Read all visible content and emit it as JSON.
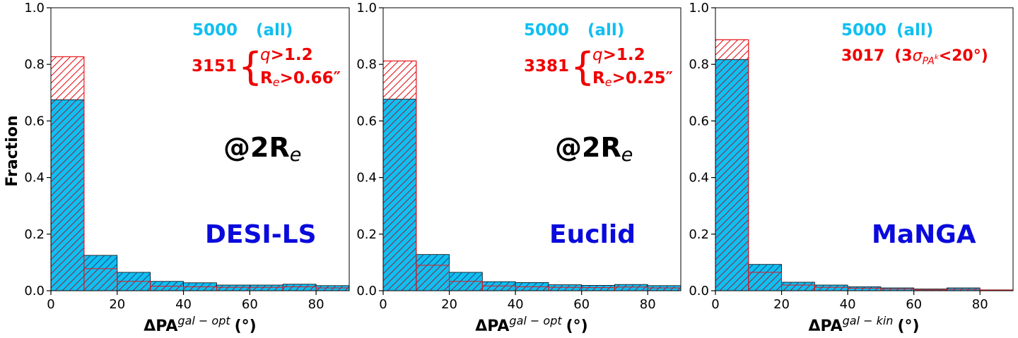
{
  "colors": {
    "fill_all": "#10bff0",
    "hatch_all": "#1b4a86",
    "hatch_subset": "#e8151b",
    "text_all": "#10bff0",
    "text_subset": "#ee0000",
    "text_survey": "#0a0adc",
    "text_radius": "#000000"
  },
  "chart_data": [
    {
      "type": "bar",
      "ylabel": "Fraction",
      "xlabel_base": "ΔPA",
      "xlabel_sup": "gal − opt",
      "xlabel_unit": "(°)",
      "xlim": [
        0,
        90
      ],
      "ylim": [
        0,
        1.0
      ],
      "xticks": [
        "0",
        "20",
        "40",
        "60",
        "80"
      ],
      "yticks": [
        "0.0",
        "0.2",
        "0.4",
        "0.6",
        "0.8",
        "1.0"
      ],
      "bin_edges": [
        0,
        10,
        20,
        30,
        40,
        50,
        60,
        70,
        80,
        90
      ],
      "series": [
        {
          "values": [
            0.675,
            0.125,
            0.065,
            0.033,
            0.028,
            0.02,
            0.02,
            0.023,
            0.018
          ]
        },
        {
          "values": [
            0.827,
            0.078,
            0.033,
            0.016,
            0.014,
            0.012,
            0.012,
            0.014,
            0.01
          ]
        }
      ],
      "annotations": {
        "all_count": "5000",
        "all_label": "(all)",
        "subset_count": "3151",
        "cond1_var": "q",
        "cond1_rest": ">1.2",
        "cond2_var": "R",
        "cond2_sub": "e",
        "cond2_rest": ">0.66″",
        "radius_main": "@2R",
        "radius_sub": "e",
        "survey": "DESI-LS"
      }
    },
    {
      "type": "bar",
      "ylabel": "",
      "xlabel_base": "ΔPA",
      "xlabel_sup": "gal − opt",
      "xlabel_unit": "(°)",
      "xlim": [
        0,
        90
      ],
      "ylim": [
        0,
        1.0
      ],
      "xticks": [
        "0",
        "20",
        "40",
        "60",
        "80"
      ],
      "yticks": [
        "0.0",
        "0.2",
        "0.4",
        "0.6",
        "0.8",
        "1.0"
      ],
      "bin_edges": [
        0,
        10,
        20,
        30,
        40,
        50,
        60,
        70,
        80,
        90
      ],
      "series": [
        {
          "values": [
            0.677,
            0.128,
            0.065,
            0.032,
            0.029,
            0.021,
            0.019,
            0.022,
            0.018
          ]
        },
        {
          "values": [
            0.812,
            0.09,
            0.033,
            0.017,
            0.014,
            0.012,
            0.011,
            0.013,
            0.01
          ]
        }
      ],
      "annotations": {
        "all_count": "5000",
        "all_label": "(all)",
        "subset_count": "3381",
        "cond1_var": "q",
        "cond1_rest": ">1.2",
        "cond2_var": "R",
        "cond2_sub": "e",
        "cond2_rest": ">0.25″",
        "radius_main": "@2R",
        "radius_sub": "e",
        "survey": "Euclid"
      }
    },
    {
      "type": "bar",
      "ylabel": "",
      "xlabel_base": "ΔPA",
      "xlabel_sup": "gal − kin",
      "xlabel_unit": "(°)",
      "xlim": [
        0,
        90
      ],
      "ylim": [
        0,
        1.0
      ],
      "xticks": [
        "0",
        "20",
        "40",
        "60",
        "80"
      ],
      "yticks": [
        "0.0",
        "0.2",
        "0.4",
        "0.6",
        "0.8",
        "1.0"
      ],
      "bin_edges": [
        0,
        10,
        20,
        30,
        40,
        50,
        60,
        70,
        80,
        90
      ],
      "series": [
        {
          "values": [
            0.817,
            0.093,
            0.03,
            0.02,
            0.014,
            0.01,
            0.006,
            0.01,
            0.003
          ]
        },
        {
          "values": [
            0.887,
            0.065,
            0.02,
            0.012,
            0.009,
            0.006,
            0.003,
            0.005,
            0.002
          ]
        }
      ],
      "annotations": {
        "all_count": "5000",
        "all_label": "(all)",
        "subset_count": "3017",
        "subset_open": "(3",
        "sigma": "σ",
        "sigma_sub": "PA",
        "sigma_subsub": "k",
        "subset_close": "<20°)",
        "survey": "MaNGA"
      }
    }
  ]
}
